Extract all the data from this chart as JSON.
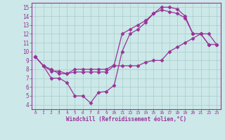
{
  "line1_x": [
    0,
    1,
    2,
    3,
    4,
    5,
    6,
    7,
    8,
    9,
    10,
    11,
    12,
    13,
    14,
    15,
    16,
    17,
    18,
    19,
    20,
    21,
    22,
    23
  ],
  "line1_y": [
    9.4,
    8.4,
    7.8,
    7.8,
    7.5,
    7.7,
    7.7,
    7.7,
    7.7,
    7.7,
    8.4,
    8.4,
    8.4,
    8.4,
    8.8,
    9.0,
    9.0,
    10.0,
    10.5,
    11.0,
    11.5,
    12.0,
    12.0,
    10.8
  ],
  "line2_x": [
    0,
    1,
    2,
    3,
    4,
    5,
    6,
    7,
    8,
    9,
    10,
    11,
    12,
    13,
    14,
    15,
    16,
    17,
    18,
    19,
    20,
    21,
    22
  ],
  "line2_y": [
    9.4,
    8.4,
    7.0,
    7.0,
    6.5,
    5.0,
    5.0,
    4.2,
    5.4,
    5.5,
    6.2,
    10.0,
    12.0,
    12.5,
    13.3,
    14.3,
    15.0,
    15.0,
    14.8,
    14.0,
    12.0,
    12.0,
    10.8
  ],
  "line3_x": [
    0,
    1,
    2,
    3,
    4,
    5,
    6,
    7,
    8,
    9,
    10,
    11,
    12,
    13,
    14,
    15,
    16,
    17,
    18,
    19,
    20,
    21,
    22,
    23
  ],
  "line3_y": [
    9.4,
    8.4,
    8.0,
    7.5,
    7.5,
    8.0,
    8.0,
    8.0,
    8.0,
    8.0,
    8.5,
    12.0,
    12.5,
    13.0,
    13.5,
    14.3,
    14.7,
    14.5,
    14.3,
    13.8,
    12.0,
    12.0,
    10.8,
    10.8
  ],
  "color": "#993399",
  "bg_color": "#cce8e8",
  "grid_color": "#aacccc",
  "xlabel": "Windchill (Refroidissement éolien,°C)",
  "xlim": [
    -0.5,
    23.5
  ],
  "ylim": [
    3.5,
    15.5
  ],
  "xticks": [
    0,
    1,
    2,
    3,
    4,
    5,
    6,
    7,
    8,
    9,
    10,
    11,
    12,
    13,
    14,
    15,
    16,
    17,
    18,
    19,
    20,
    21,
    22,
    23
  ],
  "yticks": [
    4,
    5,
    6,
    7,
    8,
    9,
    10,
    11,
    12,
    13,
    14,
    15
  ],
  "marker": "D",
  "markersize": 2.5,
  "linewidth": 0.9
}
